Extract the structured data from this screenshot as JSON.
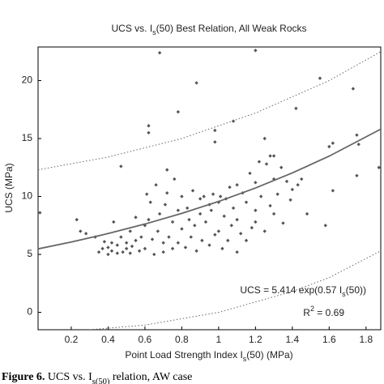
{
  "chart_data": {
    "type": "scatter",
    "title": [
      {
        "text": "UCS vs. I"
      },
      {
        "text": "s",
        "sub": true
      },
      {
        "text": "(50) Best Relation, All Weak Rocks"
      }
    ],
    "x_label": [
      {
        "text": "Point Load Strength Index I"
      },
      {
        "text": "s",
        "sub": true
      },
      {
        "text": "(50) (MPa)"
      }
    ],
    "y_label": "UCS (MPa)",
    "annotations": [
      [
        {
          "text": "UCS = 5.414 exp(0.57 I"
        },
        {
          "text": "s",
          "sub": true
        },
        {
          "text": "(50))"
        }
      ],
      [
        {
          "text": "R"
        },
        {
          "text": "2",
          "sup": true
        },
        {
          "text": " = 0.69"
        }
      ]
    ],
    "caption": [
      {
        "text": "Figure 6.",
        "bold": true
      },
      {
        "text": " UCS vs. I"
      },
      {
        "text": "s(50)",
        "sub": true
      },
      {
        "text": " relation, AW case"
      }
    ],
    "xlim": [
      0.02,
      1.88
    ],
    "ylim": [
      -1.5,
      22.9
    ],
    "xticks": [
      0.2,
      0.4,
      0.6,
      0.8,
      1,
      1.2,
      1.4,
      1.6,
      1.8
    ],
    "yticks": [
      0,
      5,
      10,
      15,
      20
    ],
    "series": [
      {
        "kind": "points",
        "color": "#555555",
        "x": [
          0.03,
          0.47,
          0.62,
          0.62,
          0.68,
          0.72,
          0.78,
          0.88,
          0.98,
          0.98,
          1.08,
          1.2,
          1.25,
          1.28,
          1.3,
          1.42,
          1.55,
          1.73,
          1.75,
          1.76,
          1.6,
          1.62,
          1.87,
          1.58,
          1.48,
          1.35,
          1.15,
          1.62,
          1.75,
          1.4,
          1.43,
          1.45,
          1.37,
          1.39,
          0.23,
          0.25,
          0.28,
          0.33,
          0.35,
          0.37,
          0.38,
          0.4,
          0.4,
          0.42,
          0.42,
          0.43,
          0.45,
          0.45,
          0.47,
          0.48,
          0.5,
          0.5,
          0.52,
          0.52,
          0.53,
          0.55,
          0.55,
          0.57,
          0.58,
          0.6,
          0.6,
          0.61,
          0.62,
          0.63,
          0.64,
          0.65,
          0.66,
          0.67,
          0.68,
          0.7,
          0.7,
          0.71,
          0.72,
          0.73,
          0.75,
          0.75,
          0.76,
          0.78,
          0.78,
          0.8,
          0.8,
          0.82,
          0.83,
          0.84,
          0.85,
          0.86,
          0.87,
          0.88,
          0.9,
          0.9,
          0.91,
          0.92,
          0.93,
          0.95,
          0.95,
          0.96,
          0.97,
          0.98,
          1,
          1,
          1.01,
          1.02,
          1.03,
          1.04,
          1.05,
          1.06,
          1.07,
          1.08,
          1.1,
          1.1,
          1.12,
          1.13,
          1.15,
          1.17,
          1.18,
          1.2,
          1.2,
          1.22,
          1.23,
          1.25,
          1.26,
          1.28,
          1.3,
          1.3,
          1.32,
          1.34,
          1.2,
          1.1
        ],
        "values": [
          8.6,
          12.6,
          16.1,
          15.5,
          22.4,
          12.3,
          17.3,
          19.8,
          15.7,
          14.7,
          16.5,
          22.6,
          15,
          13.5,
          13.5,
          17.6,
          20.2,
          19.3,
          15.3,
          14.5,
          14.3,
          14.6,
          12.5,
          7.5,
          8.5,
          7.7,
          6.2,
          10.5,
          11.8,
          10.6,
          11,
          11.5,
          11.3,
          9.7,
          8,
          7,
          6.8,
          6.5,
          5.2,
          5.5,
          6.1,
          5,
          5.6,
          5.3,
          6,
          7.8,
          5.1,
          5.8,
          6.5,
          5.2,
          5.5,
          6,
          5.1,
          7,
          5.7,
          6.2,
          8.2,
          5.3,
          6.5,
          7.5,
          5.5,
          10.2,
          8,
          9.5,
          6.3,
          5,
          11,
          7,
          8.5,
          5.2,
          6,
          9.3,
          10.3,
          6.5,
          7.8,
          5.5,
          11.5,
          6,
          8.8,
          10,
          7.2,
          5.6,
          9,
          8,
          6.5,
          10.5,
          7.5,
          5.3,
          9.8,
          8.5,
          6.2,
          10,
          7.8,
          9.3,
          5.8,
          8.8,
          10.2,
          6.7,
          9.5,
          7,
          10,
          5.5,
          8.3,
          9.8,
          6.2,
          10.8,
          7.5,
          9,
          11,
          8,
          6.8,
          10.3,
          9.5,
          12,
          7.3,
          11.2,
          8.8,
          13,
          10,
          7,
          12.8,
          9.2,
          11.5,
          8.5,
          10.2,
          12.5,
          7.8,
          5.2
        ]
      },
      {
        "kind": "line",
        "style": "solid",
        "color": "#666666",
        "x": [
          0.02,
          0.2,
          0.4,
          0.6,
          0.8,
          1.0,
          1.2,
          1.4,
          1.6,
          1.88
        ],
        "values": [
          5.476,
          6.068,
          6.8,
          7.62,
          8.54,
          9.57,
          10.73,
          12.03,
          13.48,
          15.81
        ]
      },
      {
        "kind": "line",
        "style": "dotted",
        "color": "#666666",
        "x": [
          0.02,
          0.4,
          0.8,
          1.2,
          1.6,
          1.88
        ],
        "values": [
          12.3,
          13.4,
          15,
          17.2,
          20,
          22.5
        ]
      },
      {
        "kind": "line",
        "style": "dotted",
        "color": "#666666",
        "x": [
          0.3,
          0.6,
          1.0,
          1.4,
          1.6,
          1.88
        ],
        "values": [
          -1.5,
          -1.1,
          0,
          1.8,
          3,
          5.3
        ]
      }
    ]
  }
}
